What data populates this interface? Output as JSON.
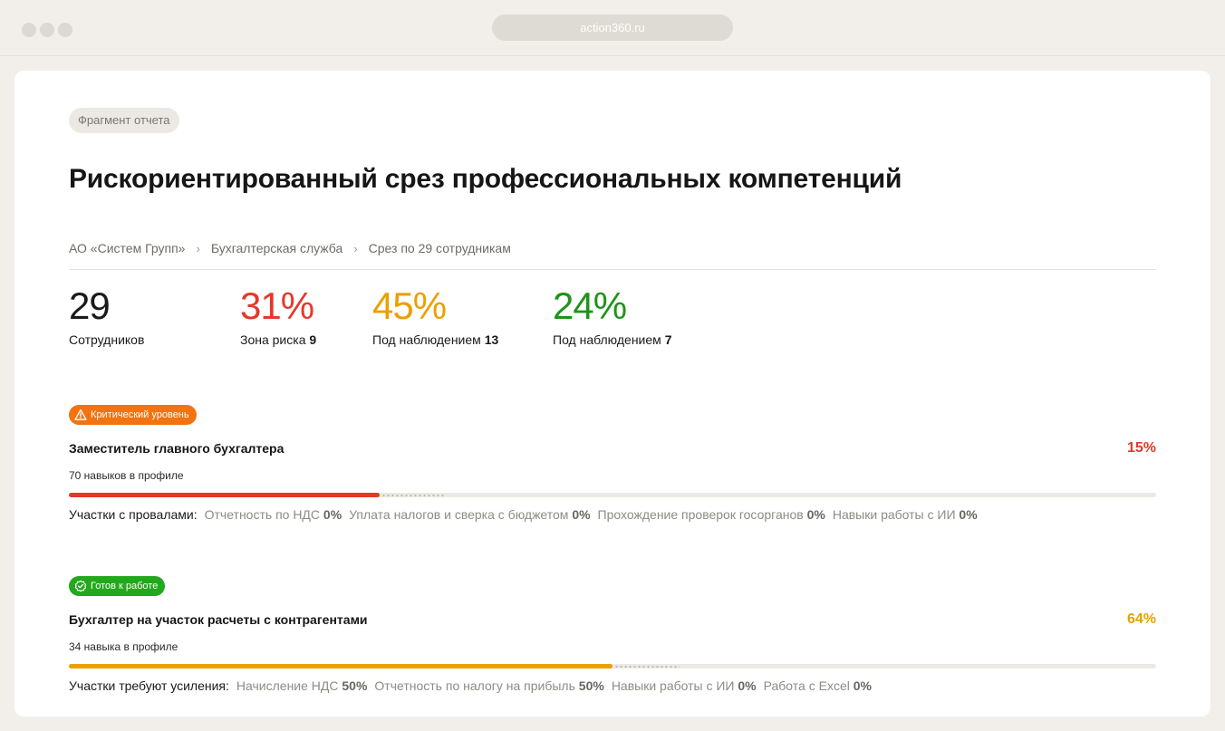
{
  "browser": {
    "url": "action360.ru"
  },
  "report": {
    "tag": "Фрагмент отчета",
    "title": "Рискориентированный срез профессиональных компетенций",
    "breadcrumb": [
      "АО «Систем Групп»",
      "Бухгалтерская служба",
      "Срез по 29 сотрудникам"
    ]
  },
  "stats": [
    {
      "value": "29",
      "label": "Сотрудников",
      "count": "",
      "color": "#1a1a1a"
    },
    {
      "value": "31%",
      "label": "Зона риска",
      "count": "9",
      "color": "#e5382b"
    },
    {
      "value": "45%",
      "label": "Под наблюдением",
      "count": "13",
      "color": "#eaa000"
    },
    {
      "value": "24%",
      "label": "Под наблюдением",
      "count": "7",
      "color": "#1f9418"
    }
  ],
  "roles": [
    {
      "badge": "Критический уровень",
      "badge_icon": "warning-icon",
      "badge_color": "#f2730f",
      "title": "Заместитель главного бухгалтера",
      "percent": "15%",
      "progress": 0.286,
      "projected": 0.347,
      "accent": "#e5382b",
      "skills": "70 навыков в профиле",
      "areas_label": "Участки с провалами:",
      "areas": [
        {
          "name": "Отчетность по НДС",
          "value": "0%"
        },
        {
          "name": "Уплата налогов и сверка с бюджетом",
          "value": "0%"
        },
        {
          "name": "Прохождение проверок госорганов",
          "value": "0%"
        },
        {
          "name": "Навыки работы с ИИ",
          "value": "0%"
        }
      ]
    },
    {
      "badge": "Готов к работе",
      "badge_icon": "check-badge-icon",
      "badge_color": "#22a81c",
      "title": "Бухгалтер на участок расчеты с контрагентами",
      "percent": "64%",
      "progress": 0.5,
      "projected": 0.562,
      "accent": "#eaa000",
      "skills": "34 навыка в профиле",
      "areas_label": "Участки требуют усиления:",
      "areas": [
        {
          "name": "Начисление НДС",
          "value": "50%"
        },
        {
          "name": "Отчетность по налогу на прибыль",
          "value": "50%"
        },
        {
          "name": "Навыки работы с ИИ",
          "value": "0%"
        },
        {
          "name": "Работа с Excel",
          "value": "0%"
        }
      ]
    }
  ]
}
